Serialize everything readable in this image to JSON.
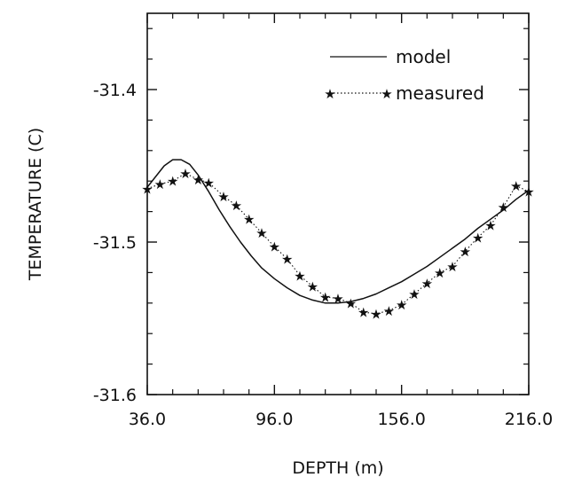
{
  "chart_data": {
    "type": "line",
    "title": "",
    "xlabel": "DEPTH (m)",
    "ylabel": "TEMPERATURE (C)",
    "xlim": [
      36.0,
      216.0
    ],
    "ylim": [
      -31.6,
      -31.35
    ],
    "x_ticks": [
      "36.0",
      "96.0",
      "156.0",
      "216.0"
    ],
    "x_tick_values": [
      36,
      96,
      156,
      216
    ],
    "y_ticks": [
      "-31.4",
      "-31.5",
      "-31.6"
    ],
    "y_tick_values": [
      -31.4,
      -31.5,
      -31.6
    ],
    "grid": false,
    "legend_position": "top-right",
    "series": [
      {
        "name": "model",
        "style": "solid",
        "color": "#111111",
        "x": [
          36,
          40,
          44,
          48,
          52,
          56,
          60,
          65,
          70,
          75,
          80,
          85,
          90,
          96,
          102,
          108,
          114,
          120,
          126,
          132,
          138,
          144,
          150,
          156,
          162,
          168,
          174,
          180,
          186,
          192,
          198,
          204,
          210,
          216
        ],
        "y": [
          -31.464,
          -31.457,
          -31.45,
          -31.446,
          -31.446,
          -31.449,
          -31.456,
          -31.467,
          -31.479,
          -31.49,
          -31.5,
          -31.509,
          -31.517,
          -31.524,
          -31.53,
          -31.535,
          -31.538,
          -31.54,
          -31.54,
          -31.539,
          -31.537,
          -31.534,
          -31.53,
          -31.526,
          -31.521,
          -31.516,
          -31.51,
          -31.504,
          -31.498,
          -31.491,
          -31.485,
          -31.479,
          -31.472,
          -31.466
        ]
      },
      {
        "name": "measured",
        "style": "dotted-star",
        "color": "#111111",
        "x": [
          36,
          42,
          48,
          54,
          60,
          65,
          72,
          78,
          84,
          90,
          96,
          102,
          108,
          114,
          120,
          126,
          132,
          138,
          144,
          150,
          156,
          162,
          168,
          174,
          180,
          186,
          192,
          198,
          204,
          210,
          216
        ],
        "y": [
          -31.465,
          -31.462,
          -31.46,
          -31.455,
          -31.459,
          -31.461,
          -31.47,
          -31.476,
          -31.485,
          -31.494,
          -31.503,
          -31.511,
          -31.522,
          -31.529,
          -31.536,
          -31.537,
          -31.54,
          -31.546,
          -31.547,
          -31.545,
          -31.541,
          -31.534,
          -31.527,
          -31.52,
          -31.516,
          -31.506,
          -31.497,
          -31.489,
          -31.477,
          -31.463,
          -31.467
        ]
      }
    ]
  }
}
